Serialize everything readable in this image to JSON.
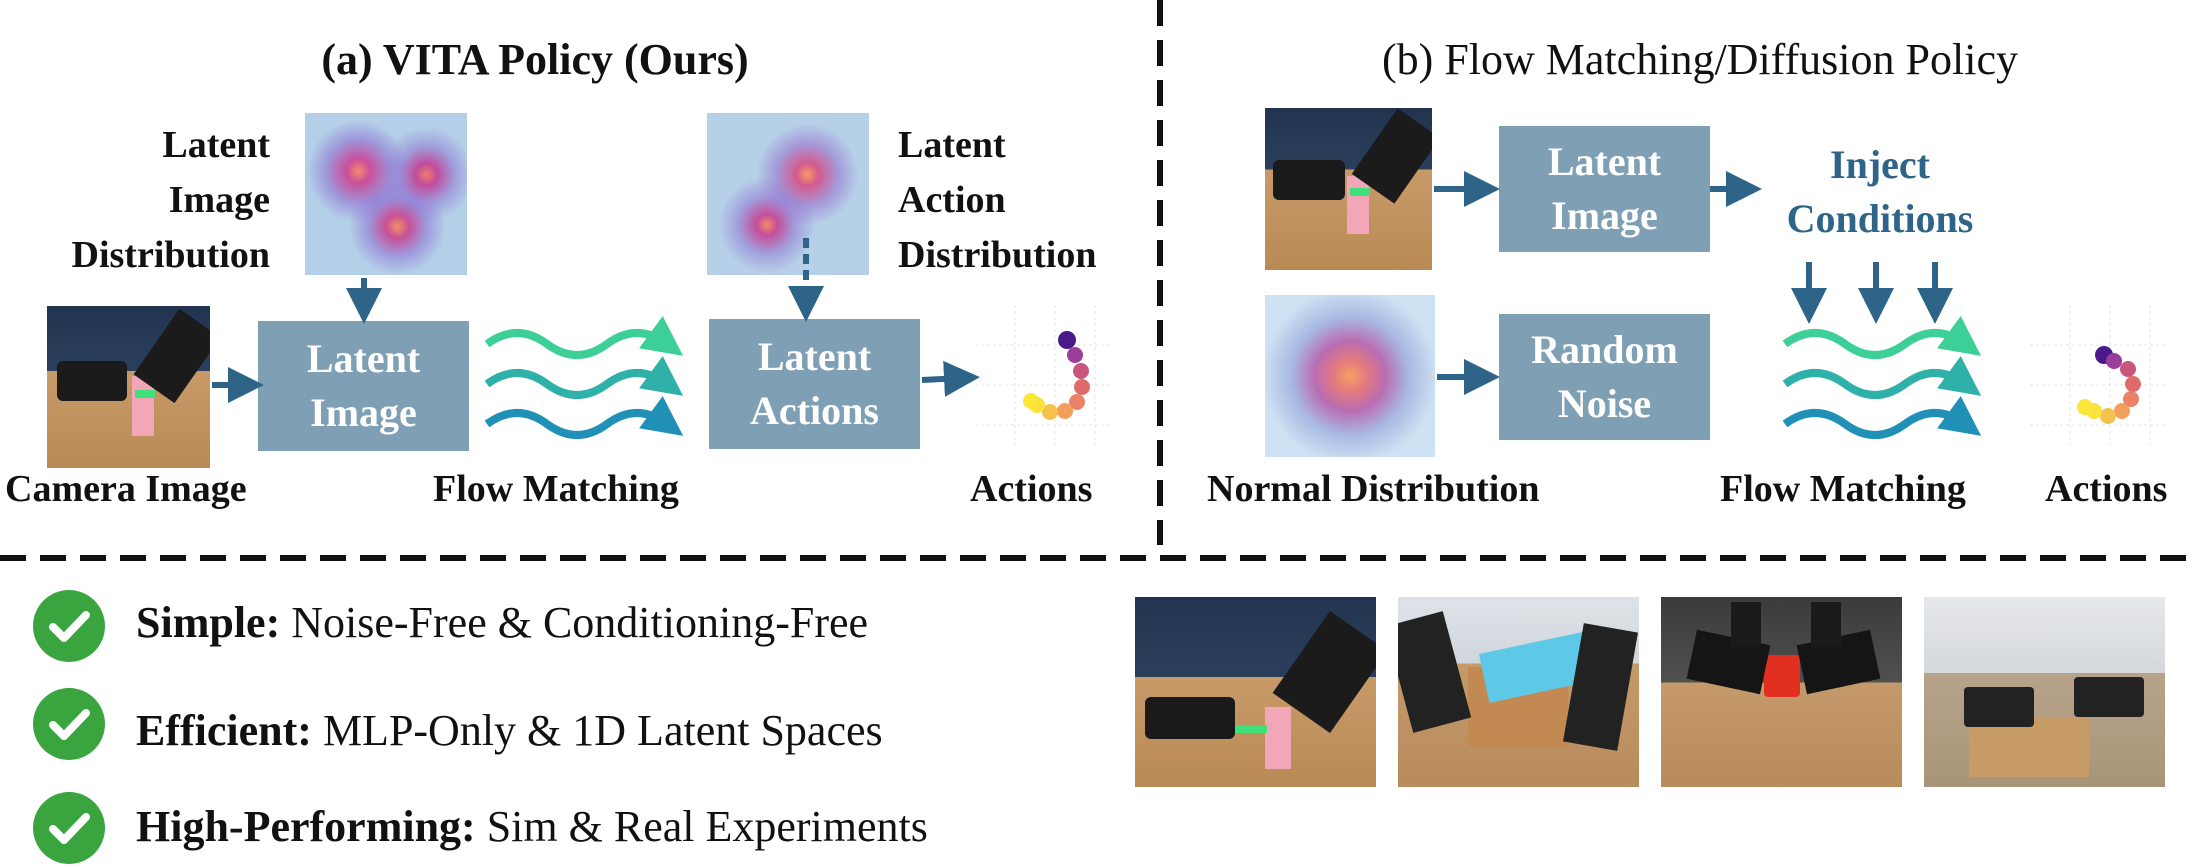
{
  "panel_a": {
    "title": "(a) VITA Policy (Ours)",
    "latent_image_distribution": [
      "Latent",
      "Image",
      "Distribution"
    ],
    "latent_action_distribution": [
      "Latent",
      "Action",
      "Distribution"
    ],
    "latent_image_box": [
      "Latent",
      "Image"
    ],
    "latent_actions_box": [
      "Latent",
      "Actions"
    ],
    "camera_image_label": "Camera Image",
    "flow_matching_label": "Flow Matching",
    "actions_label": "Actions"
  },
  "panel_b": {
    "title": "(b) Flow Matching/Diffusion Policy",
    "latent_image_box": [
      "Latent",
      "Image"
    ],
    "random_noise_box": [
      "Random",
      "Noise"
    ],
    "inject_conditions": [
      "Inject",
      "Conditions"
    ],
    "normal_distribution_label": "Normal Distribution",
    "flow_matching_label": "Flow Matching",
    "actions_label": "Actions"
  },
  "features": [
    {
      "bold": "Simple:",
      "text": " Noise-Free & Conditioning-Free"
    },
    {
      "bold": "Efficient:",
      "text": " MLP-Only & 1D Latent Spaces"
    },
    {
      "bold": "High-Performing:",
      "text": " Sim & Real Experiments"
    }
  ],
  "colors": {
    "box": "#7f9fb5",
    "arrow": "#2d6488",
    "check": "#3aa53e",
    "wave_top": "#3fd49a",
    "wave_bottom": "#1f8fb6"
  },
  "icons": [
    "check-icon",
    "robot-photo",
    "heatmap"
  ]
}
